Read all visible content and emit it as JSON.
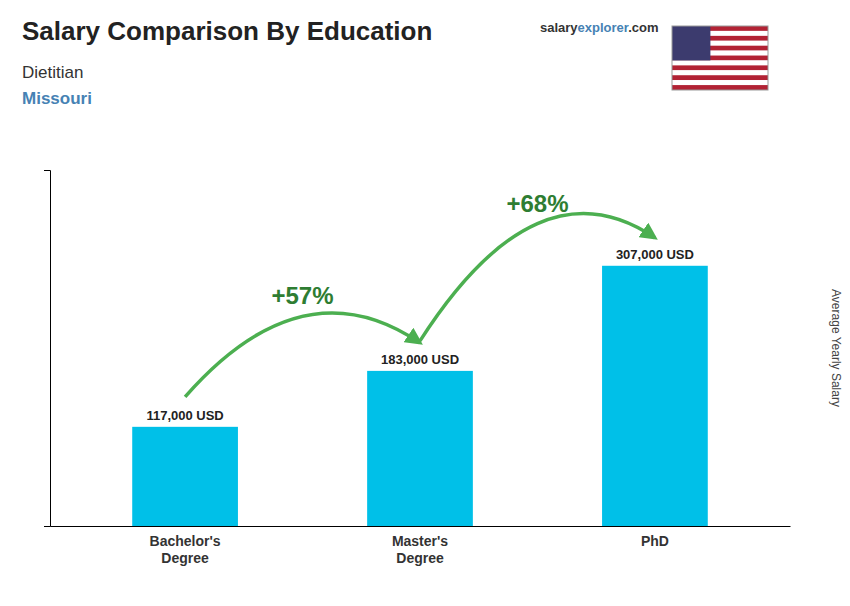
{
  "chart_data": {
    "type": "bar",
    "title": "Salary Comparison By Education",
    "subtitle": [
      "Dietitian",
      "Missouri"
    ],
    "ylabel": "Average Yearly Salary",
    "brand": [
      "salary",
      "explorer",
      ".com"
    ],
    "categories": [
      "Bachelor's\nDegree",
      "Master's\nDegree",
      "PhD"
    ],
    "values": [
      117000,
      183000,
      307000
    ],
    "value_labels": [
      "117,000 USD",
      "183,000 USD",
      "307,000 USD"
    ],
    "data_labels": true,
    "annotations": [
      "+57%",
      "+68%"
    ],
    "color": "#00C0E8",
    "ylim": [
      0,
      420000
    ],
    "tick_labels": "x"
  }
}
